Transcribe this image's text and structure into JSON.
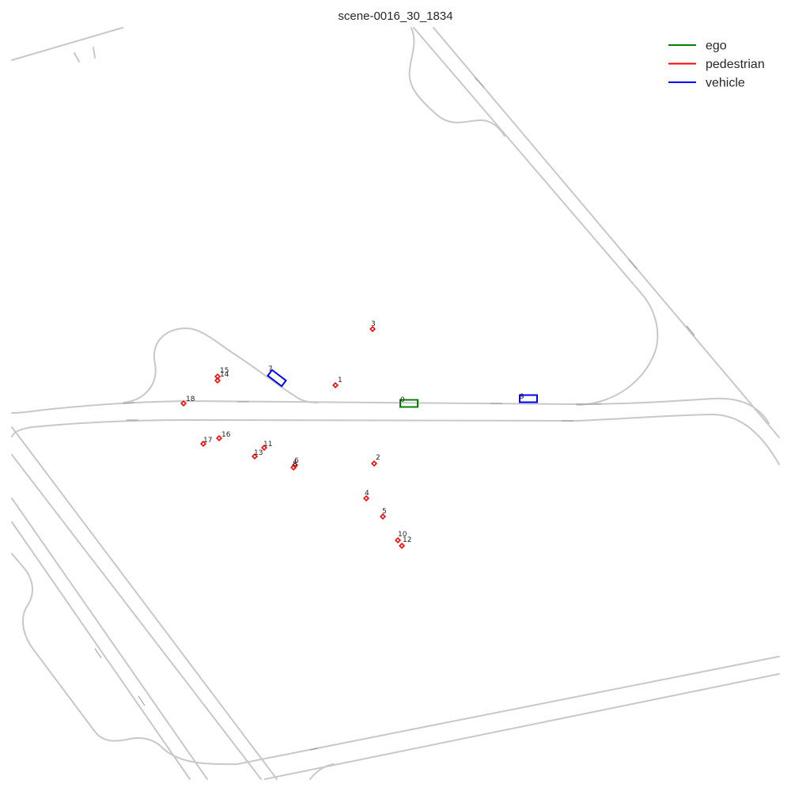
{
  "title": "scene-0016_30_1834",
  "legend": [
    {
      "label": "ego",
      "color": "#008000"
    },
    {
      "label": "pedestrian",
      "color": "#ff0000"
    },
    {
      "label": "vehicle",
      "color": "#0000ff"
    }
  ],
  "agents": [
    {
      "id": "0",
      "type": "ego"
    },
    {
      "id": "1",
      "type": "pedestrian"
    },
    {
      "id": "2",
      "type": "pedestrian"
    },
    {
      "id": "3",
      "type": "pedestrian"
    },
    {
      "id": "4",
      "type": "pedestrian"
    },
    {
      "id": "5",
      "type": "pedestrian"
    },
    {
      "id": "6",
      "type": "pedestrian"
    },
    {
      "id": "7",
      "type": "vehicle"
    },
    {
      "id": "8",
      "type": "pedestrian"
    },
    {
      "id": "9",
      "type": "vehicle"
    },
    {
      "id": "10",
      "type": "pedestrian"
    },
    {
      "id": "11",
      "type": "pedestrian"
    },
    {
      "id": "12",
      "type": "pedestrian"
    },
    {
      "id": "13",
      "type": "pedestrian"
    },
    {
      "id": "14",
      "type": "pedestrian"
    },
    {
      "id": "15",
      "type": "pedestrian"
    },
    {
      "id": "16",
      "type": "pedestrian"
    },
    {
      "id": "17",
      "type": "pedestrian"
    },
    {
      "id": "18",
      "type": "pedestrian"
    }
  ]
}
